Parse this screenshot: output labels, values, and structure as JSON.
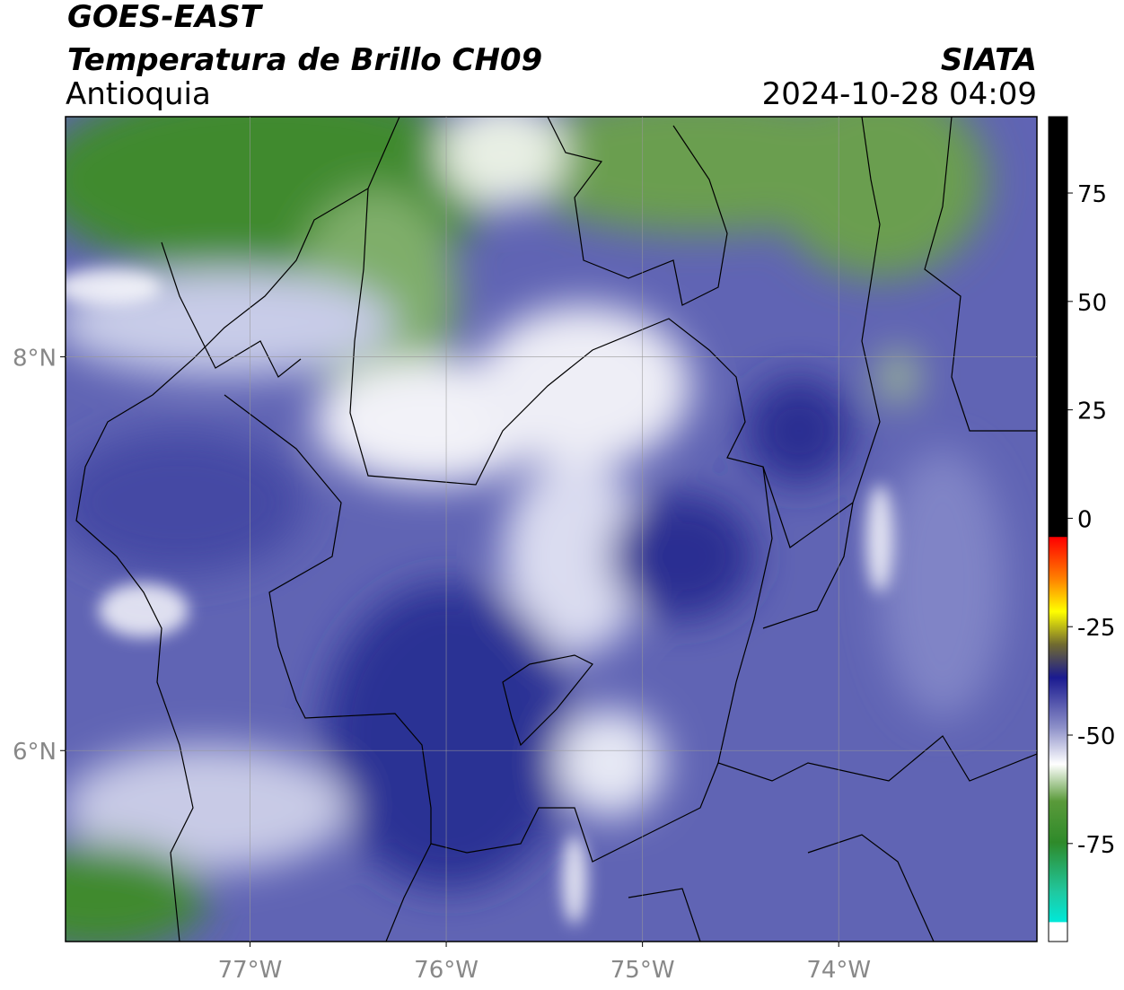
{
  "map": {
    "title": "GOES-EAST",
    "subtitle": "Temperatura de Brillo CH09",
    "region": "Antioquia",
    "source": "SIATA",
    "timestamp": "2024-10-28 04:09",
    "xlim": [
      -77.94,
      -72.99
    ],
    "ylim": [
      5.03,
      9.22
    ],
    "xticks": [
      {
        "value": -77,
        "label": "77°W"
      },
      {
        "value": -76,
        "label": "76°W"
      },
      {
        "value": -75,
        "label": "75°W"
      },
      {
        "value": -74,
        "label": "74°W"
      }
    ],
    "yticks": [
      {
        "value": 6,
        "label": "6°N"
      },
      {
        "value": 8,
        "label": "8°N"
      }
    ],
    "grid": true,
    "colorbar": {
      "lim": [
        -97.6,
        92.6
      ],
      "ticks": [
        -75,
        -50,
        -25,
        0,
        25,
        50,
        75
      ]
    }
  }
}
